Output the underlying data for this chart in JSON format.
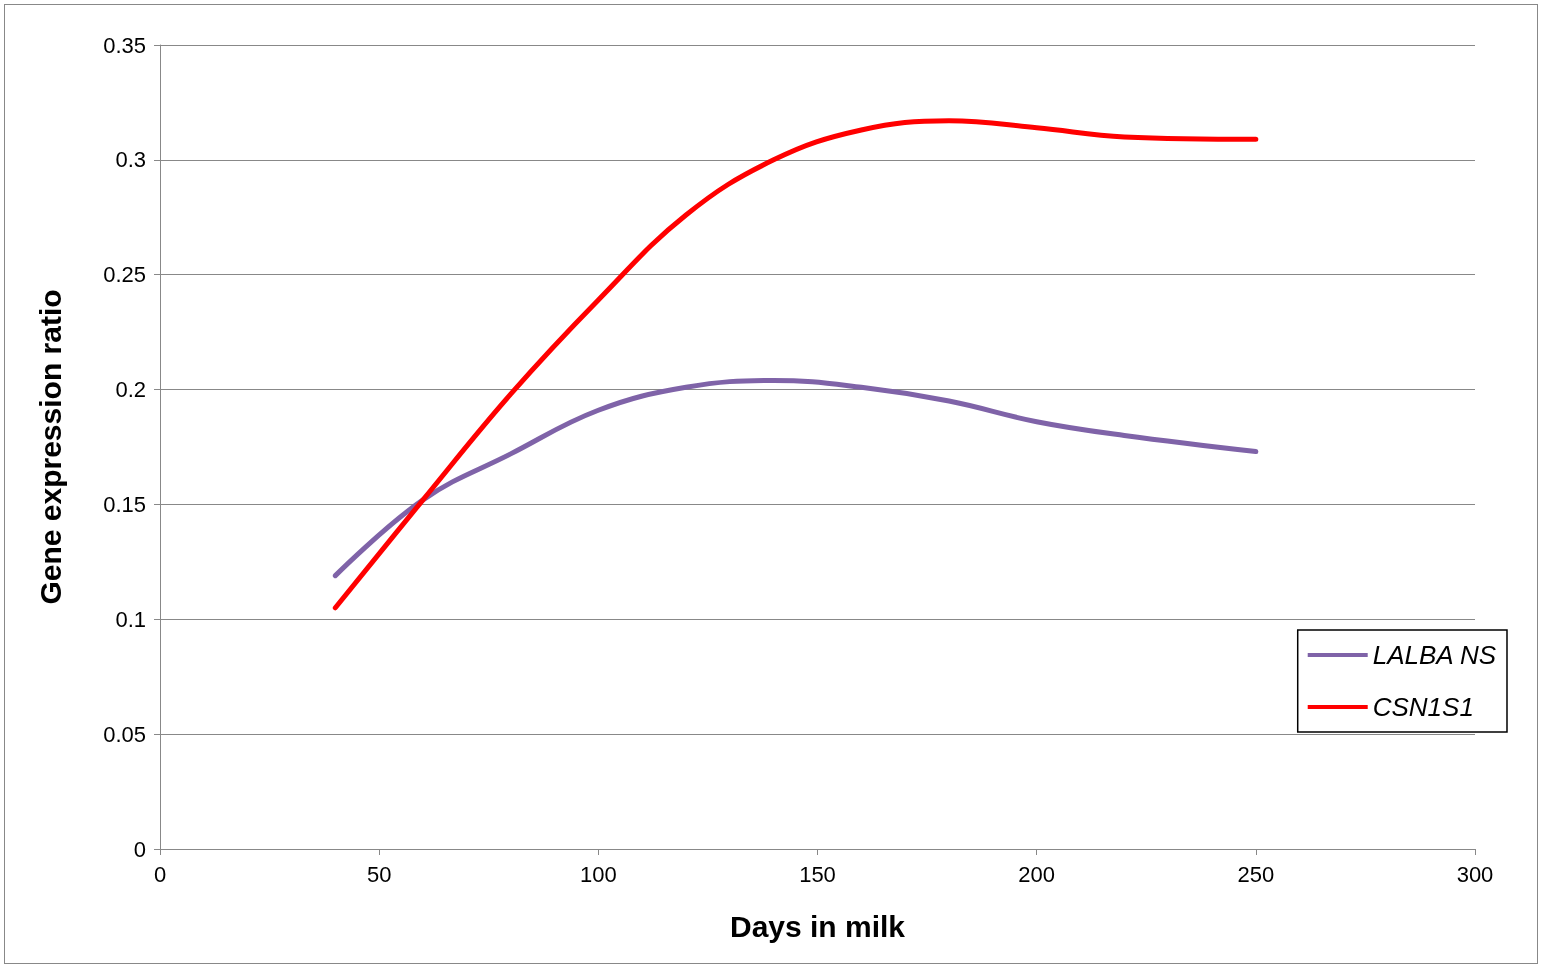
{
  "chart_data": {
    "type": "line",
    "xlabel": "Days in milk",
    "ylabel": "Gene expression ratio",
    "xlim": [
      0,
      300
    ],
    "xticks": [
      0,
      50,
      100,
      150,
      200,
      250,
      300
    ],
    "ylim": [
      0,
      0.35
    ],
    "yticks": [
      0,
      0.05,
      0.1,
      0.15,
      0.2,
      0.25,
      0.3,
      0.35
    ],
    "grid": "y",
    "legend": "right",
    "marker": "none",
    "line_style": "solid",
    "series": [
      {
        "name": "LALBA NS",
        "color": "#7f63a8",
        "x": [
          40,
          60,
          80,
          100,
          120,
          140,
          160,
          180,
          200,
          220,
          250
        ],
        "values": [
          0.119,
          0.152,
          0.172,
          0.191,
          0.201,
          0.204,
          0.201,
          0.195,
          0.186,
          0.18,
          0.173
        ]
      },
      {
        "name": "CSN1S1",
        "color": "#ff0000",
        "x": [
          40,
          60,
          80,
          100,
          120,
          140,
          160,
          180,
          200,
          220,
          250
        ],
        "values": [
          0.105,
          0.152,
          0.198,
          0.239,
          0.276,
          0.3,
          0.313,
          0.317,
          0.314,
          0.31,
          0.309
        ]
      }
    ]
  }
}
